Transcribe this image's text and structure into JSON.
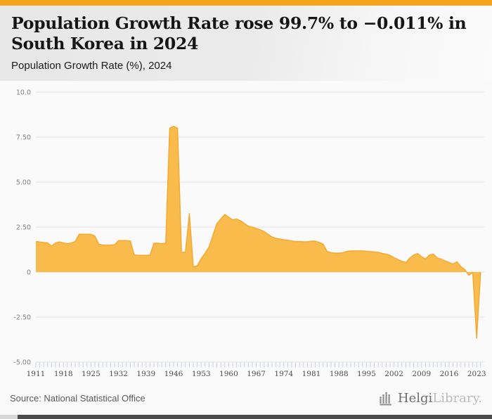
{
  "accent_color": "#F2A51D",
  "header": {
    "title_line1": "Population Growth Rate rose 99.7% to −0.011% in",
    "title_line2": "South Korea in 2024",
    "subtitle": "Population Growth Rate (%), 2024"
  },
  "footer": {
    "source": "Source: National Statistical Office",
    "logo_icon": "helgi-pipes-icon",
    "logo_text_primary": "Helgi",
    "logo_text_secondary": "Library."
  },
  "chart_data": {
    "type": "area",
    "title": "Population Growth Rate (%), 2024",
    "series_name": "Population Growth Rate (%)",
    "x_start_year": 1911,
    "x_end_year": 2024,
    "x_tick_label_years": [
      1911,
      1918,
      1925,
      1932,
      1939,
      1946,
      1953,
      1960,
      1967,
      1974,
      1981,
      1988,
      1995,
      2002,
      2009,
      2016,
      2023
    ],
    "ylim": [
      -5,
      10
    ],
    "y_tick_values": [
      10,
      7.5,
      5,
      2.5,
      0,
      -2.5,
      -5
    ],
    "y_tick_labels": [
      "10.0",
      "7.50",
      "5.00",
      "2.50",
      "0",
      "-2.50",
      "-5.00"
    ],
    "grid": true,
    "legend": "none",
    "fill_color": "#F8BB4C",
    "line_color": "#F3A82E",
    "values": [
      1.7,
      1.67,
      1.64,
      1.62,
      1.45,
      1.62,
      1.68,
      1.62,
      1.58,
      1.62,
      1.7,
      2.1,
      2.1,
      2.1,
      2.1,
      2.0,
      1.55,
      1.5,
      1.5,
      1.5,
      1.52,
      1.75,
      1.75,
      1.75,
      1.73,
      0.95,
      0.93,
      0.93,
      0.93,
      0.95,
      1.6,
      1.6,
      1.58,
      1.6,
      8.0,
      8.1,
      8.0,
      1.1,
      1.1,
      3.25,
      0.3,
      0.35,
      0.75,
      1.05,
      1.4,
      2.05,
      2.7,
      2.95,
      3.2,
      3.05,
      2.9,
      2.95,
      2.85,
      2.7,
      2.55,
      2.5,
      2.42,
      2.35,
      2.25,
      2.1,
      1.95,
      1.88,
      1.84,
      1.8,
      1.77,
      1.73,
      1.7,
      1.7,
      1.68,
      1.68,
      1.72,
      1.72,
      1.65,
      1.55,
      1.15,
      1.08,
      1.05,
      1.05,
      1.08,
      1.15,
      1.18,
      1.18,
      1.18,
      1.18,
      1.16,
      1.14,
      1.12,
      1.1,
      1.04,
      1.0,
      0.93,
      0.8,
      0.7,
      0.6,
      0.53,
      0.78,
      0.95,
      1.03,
      0.85,
      0.73,
      0.95,
      1.0,
      0.78,
      0.72,
      0.62,
      0.53,
      0.45,
      0.57,
      0.3,
      0.14,
      -0.18,
      -0.03,
      -3.68,
      -0.011
    ]
  }
}
